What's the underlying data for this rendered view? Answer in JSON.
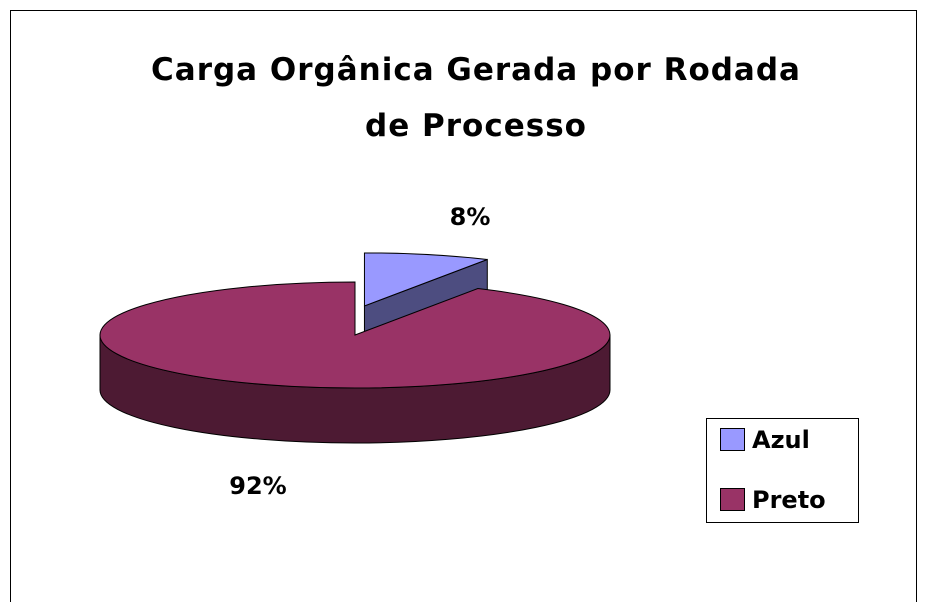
{
  "chart_data": {
    "type": "pie",
    "title": "Carga Orgânica Gerada por Rodada de Processo",
    "categories": [
      "Azul",
      "Preto"
    ],
    "values": [
      8,
      92
    ],
    "value_labels": [
      "8%",
      "92%"
    ],
    "colors": [
      "#9999ff",
      "#993366"
    ],
    "legend": "right",
    "exploded": "Azul"
  }
}
